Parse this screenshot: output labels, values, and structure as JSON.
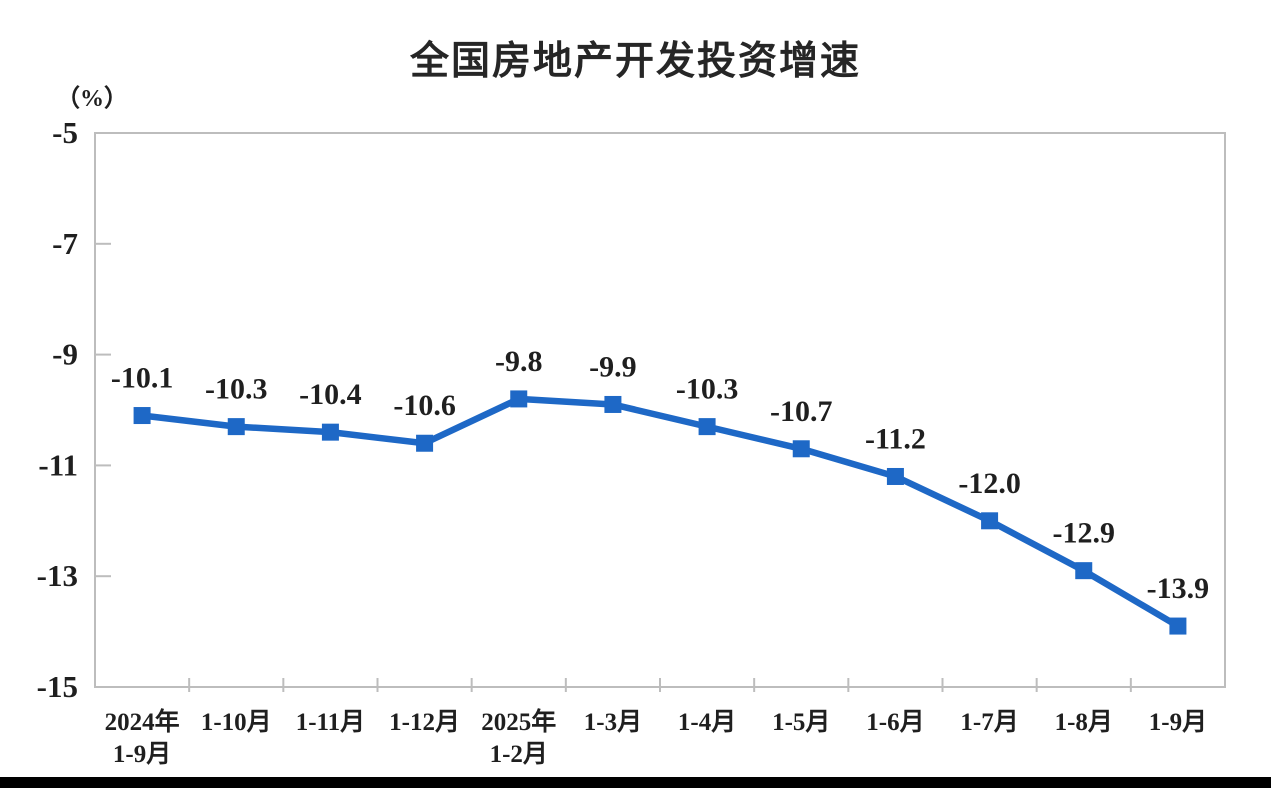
{
  "page": {
    "background_color": "#ffffff",
    "bottom_bar_color": "#000000"
  },
  "chart_data": {
    "type": "line",
    "title": "全国房地产开发投资增速",
    "unit_label": "（%）",
    "categories": [
      "2024年\n1-9月",
      "1-10月",
      "1-11月",
      "1-12月",
      "2025年\n1-2月",
      "1-3月",
      "1-4月",
      "1-5月",
      "1-6月",
      "1-7月",
      "1-8月",
      "1-9月"
    ],
    "series": [
      {
        "name": "全国房地产开发投资增速",
        "values": [
          -10.1,
          -10.3,
          -10.4,
          -10.6,
          -9.8,
          -9.9,
          -10.3,
          -10.7,
          -11.2,
          -12.0,
          -12.9,
          -13.9
        ]
      }
    ],
    "data_labels": [
      "-10.1",
      "-10.3",
      "-10.4",
      "-10.6",
      "-9.8",
      "-9.9",
      "-10.3",
      "-10.7",
      "-11.2",
      "-12.0",
      "-12.9",
      "-13.9"
    ],
    "y_tick_labels": [
      "-5",
      "-7",
      "-9",
      "-11",
      "-13",
      "-15"
    ],
    "y_ticks": [
      -5,
      -7,
      -9,
      -11,
      -13,
      -15
    ],
    "ylim": [
      -15,
      -5
    ],
    "grid": false,
    "legend": "none",
    "marker": "square",
    "line_color": "#1e68c6",
    "axis_color": "#bdbdbd",
    "text_color": "#1f1f1f",
    "title_color": "#262626"
  }
}
